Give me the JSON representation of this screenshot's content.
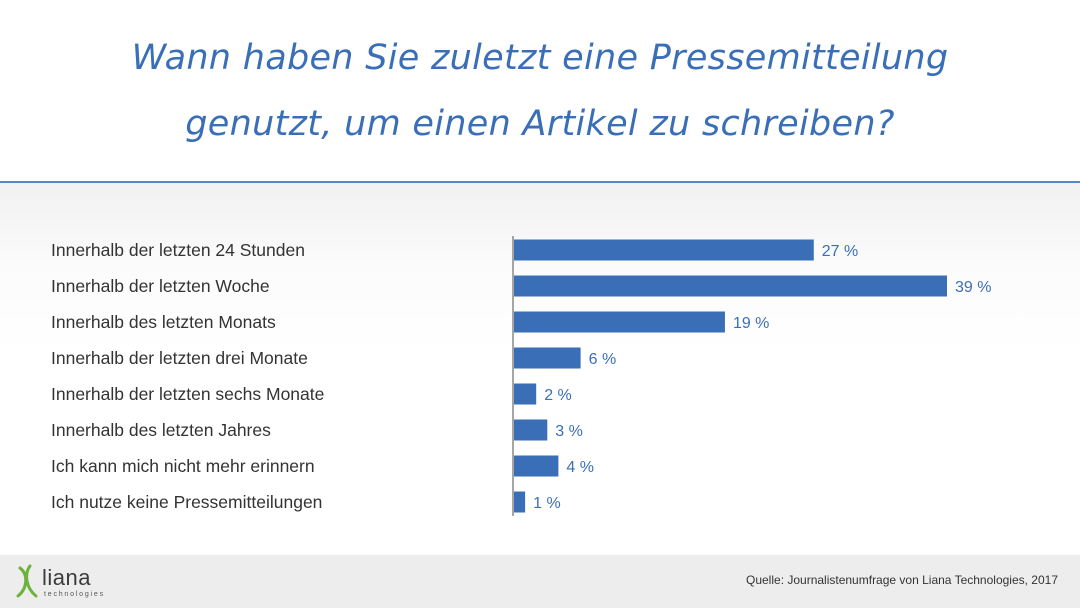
{
  "header": {
    "title_line1": "Wann haben Sie zuletzt eine Pressemitteilung",
    "title_line2": "genutzt, um einen Artikel zu schreiben?"
  },
  "colors": {
    "bar": "#3a6fb7",
    "title": "#3a6fb7",
    "label_text": "#333333",
    "value_text": "#3a6fb7",
    "axis": "#888888"
  },
  "chart_data": {
    "type": "bar",
    "orientation": "horizontal",
    "categories": [
      "Innerhalb der letzten 24 Stunden",
      "Innerhalb der letzten Woche",
      "Innerhalb des letzten Monats",
      "Innerhalb der letzten drei Monate",
      "Innerhalb der letzten sechs Monate",
      "Innerhalb des letzten Jahres",
      "Ich kann mich nicht mehr erinnern",
      "Ich nutze keine Pressemitteilungen"
    ],
    "values": [
      27,
      39,
      19,
      6,
      2,
      3,
      4,
      1
    ],
    "value_labels": [
      "27 %",
      "39 %",
      "19 %",
      "6 %",
      "2 %",
      "3 %",
      "4 %",
      "1 %"
    ],
    "unit": "%",
    "xlim": [
      0,
      39
    ],
    "grid": false,
    "legend": "none"
  },
  "logo": {
    "name": "liana",
    "subtitle": "technologies",
    "icon": "liana-leaf-icon"
  },
  "footer": {
    "source": "Quelle: Journalistenumfrage von Liana Technologies, 2017"
  }
}
